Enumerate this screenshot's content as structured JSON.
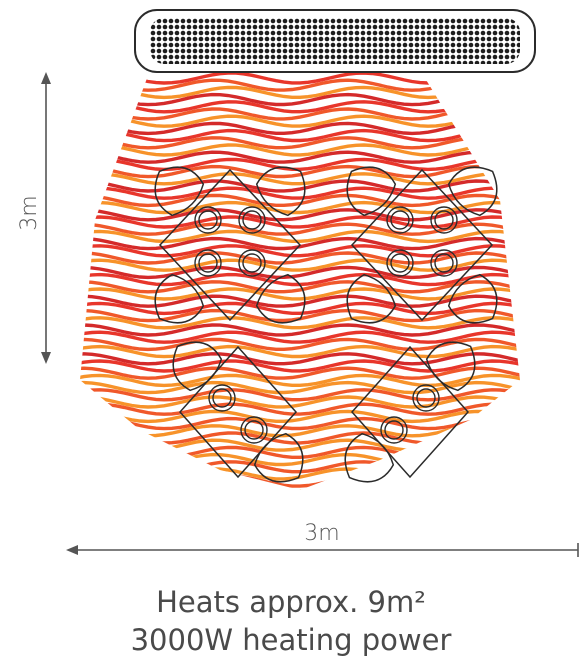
{
  "dimensions": {
    "height_label": "3m",
    "width_label": "3m"
  },
  "caption": {
    "coverage": "Heats approx. 9m²",
    "power": "3000W heating power"
  },
  "colors": {
    "wave_top": "#e8362b",
    "wave_mid": "#f0582a",
    "wave_bottom": "#f7932a",
    "wave_alt": "#d42a2a",
    "outline": "#2b2b2b",
    "dimension_line": "#555555",
    "caption_text": "#4a4a4a"
  },
  "icons": {
    "heater": "heater-icon",
    "tables": [
      "table-with-chairs-icon",
      "table-with-chairs-icon",
      "table-with-chairs-icon",
      "table-with-chairs-icon"
    ]
  }
}
